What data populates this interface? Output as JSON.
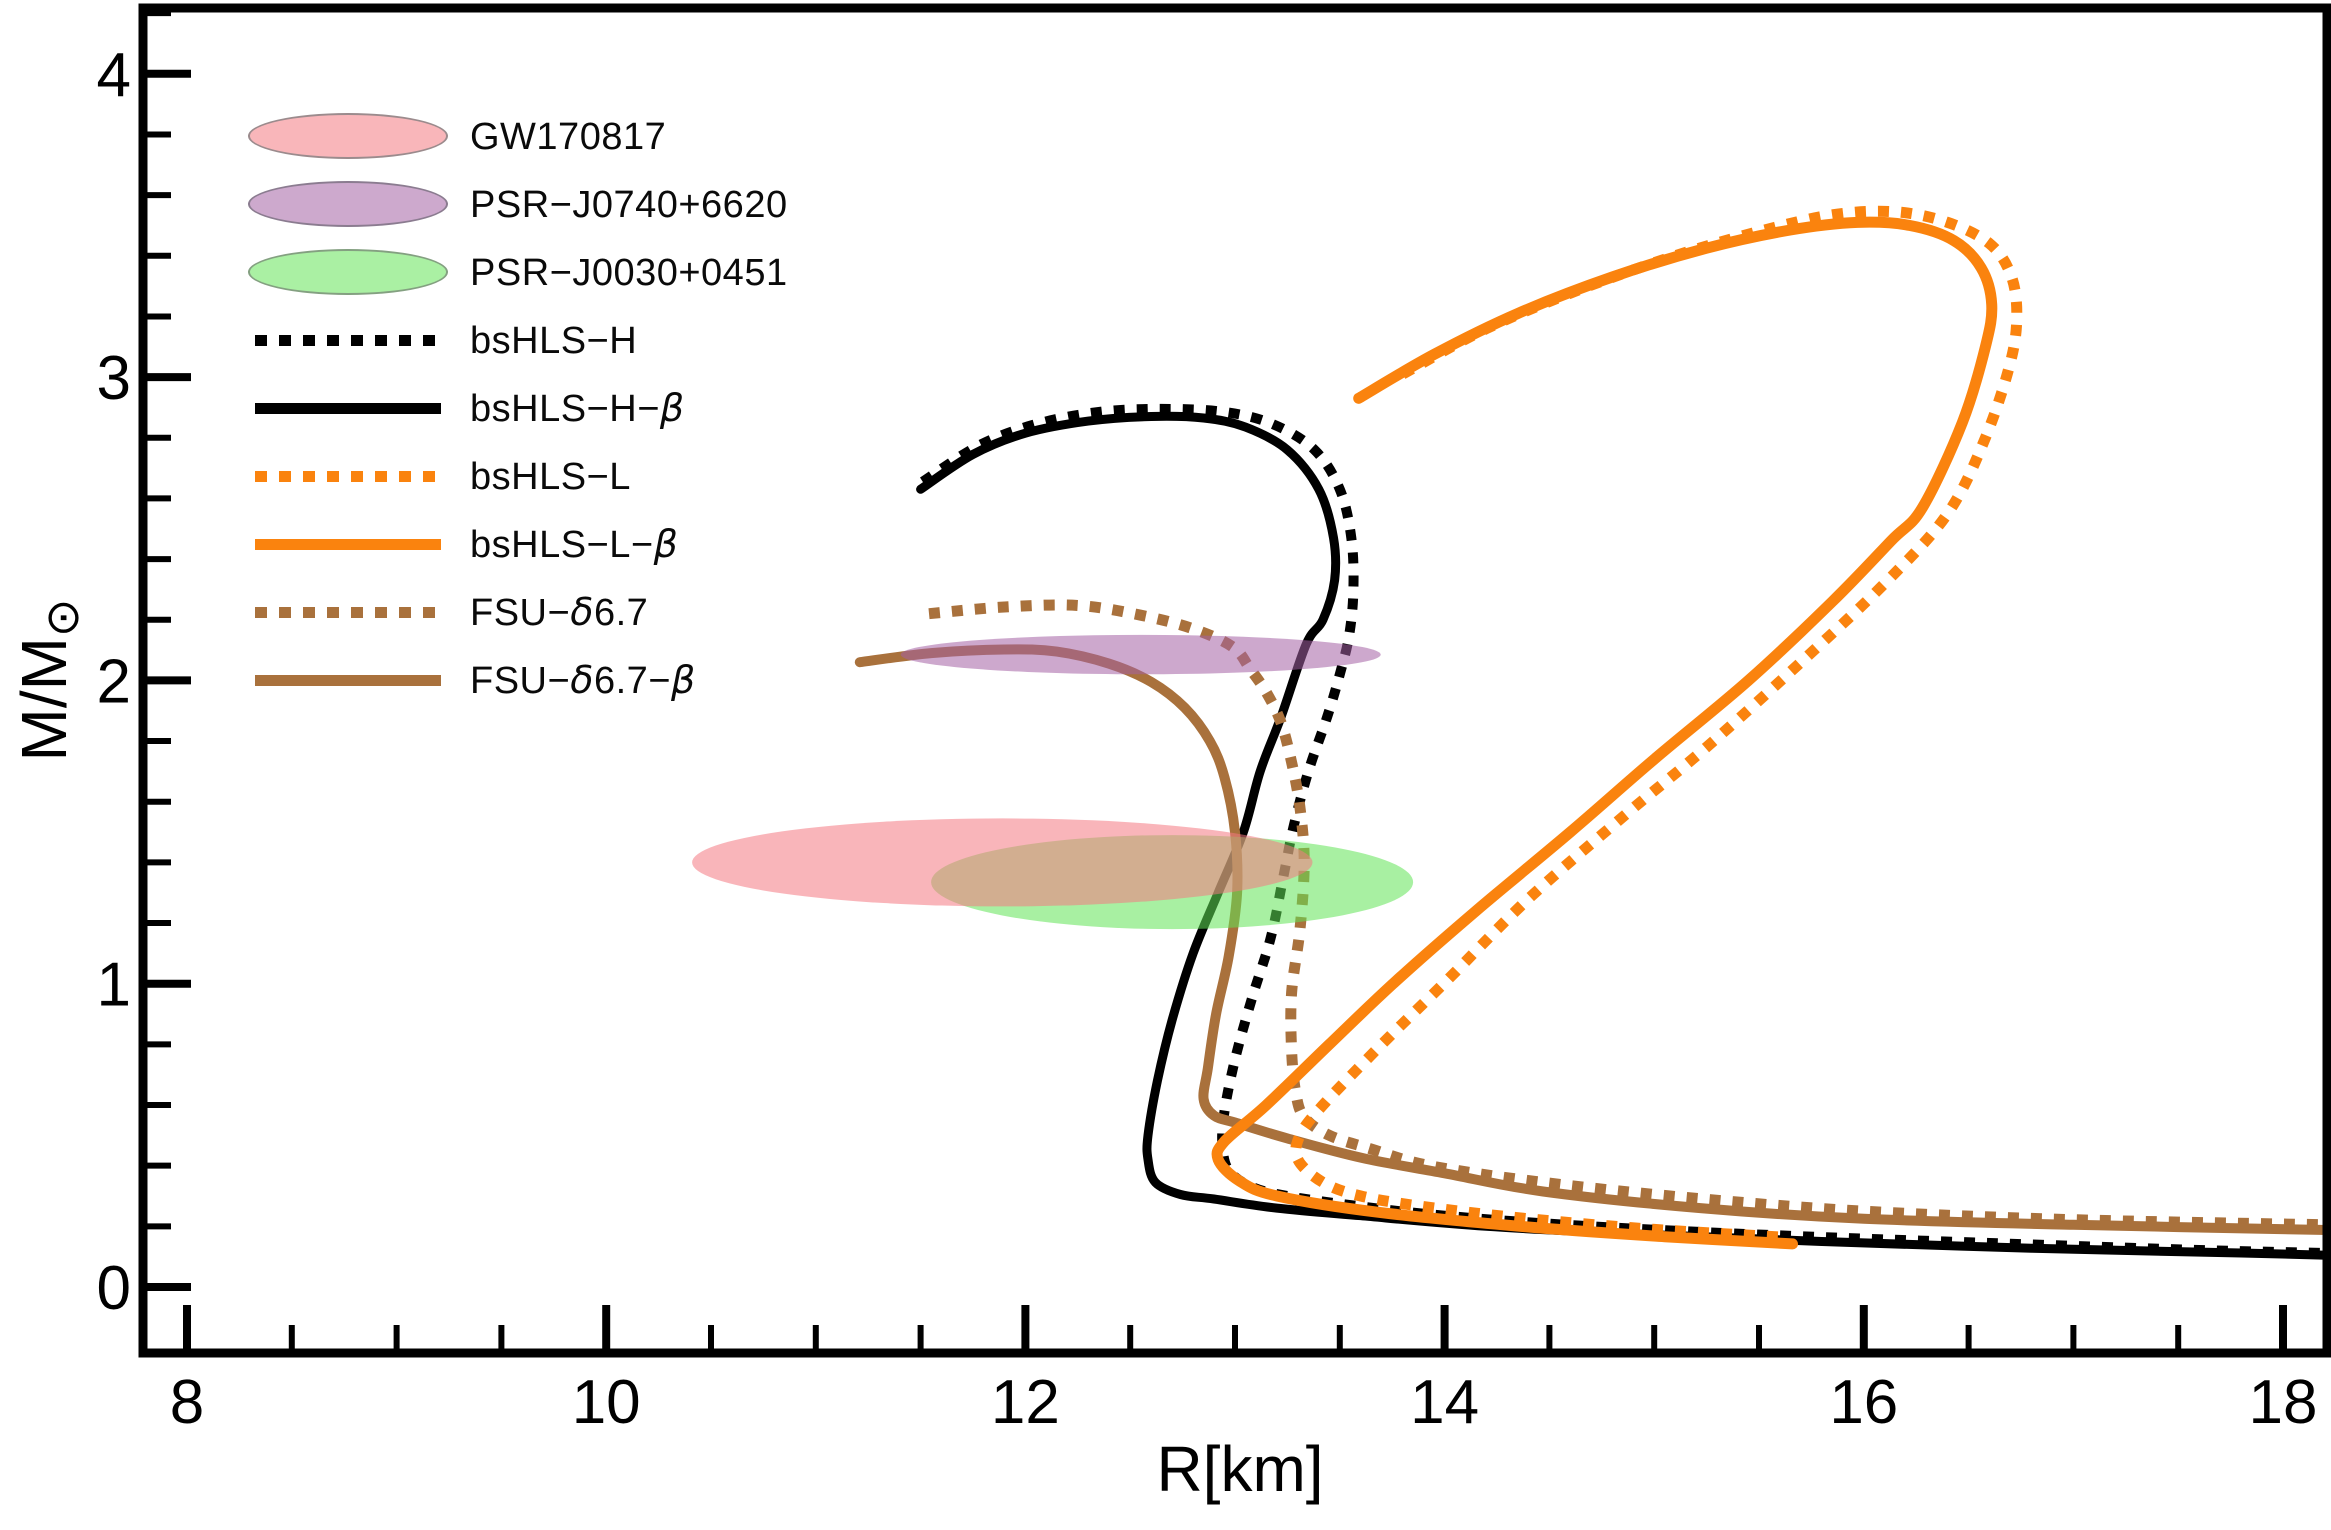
{
  "figure": {
    "background": "#ffffff",
    "axes": {
      "xlabel": "R[km]",
      "ylabel_main": "M/M",
      "ylabel_sub": "⊙"
    },
    "legend": {
      "items": [
        {
          "p1": "GW170817",
          "swatch": {
            "kind": "ellipse",
            "fill": "#F9B6BA",
            "border": "#9B8B8D"
          }
        },
        {
          "p1": "PSR−J0740+6620",
          "swatch": {
            "kind": "ellipse",
            "fill": "#CDA9CD",
            "border": "#8B7C90"
          }
        },
        {
          "p1": "PSR−J0030+0451",
          "swatch": {
            "kind": "ellipse",
            "fill": "#AAF0A3",
            "border": "#84A081"
          }
        },
        {
          "p1": "bsHLS−H",
          "swatch": {
            "kind": "dotted",
            "color": "#000000"
          }
        },
        {
          "p1": "bsHLS−H−",
          "i1": "β",
          "swatch": {
            "kind": "solid",
            "color": "#000000"
          }
        },
        {
          "p1": "bsHLS−L",
          "swatch": {
            "kind": "dotted",
            "color": "#FA830E"
          }
        },
        {
          "p1": "bsHLS−L−",
          "i1": "β",
          "swatch": {
            "kind": "solid",
            "color": "#FA830E"
          }
        },
        {
          "p1": "FSU−",
          "i1": "δ",
          "p2": "6.7",
          "swatch": {
            "kind": "dotted",
            "color": "#A9713C"
          }
        },
        {
          "p1": "FSU−",
          "i1": "δ",
          "p2": "6.7−",
          "i2": "β",
          "swatch": {
            "kind": "solid",
            "color": "#A9713C"
          }
        }
      ]
    }
  },
  "chart_data": {
    "type": "line",
    "title": "",
    "xlabel": "R[km]",
    "ylabel": "M/M⊙",
    "xlim": [
      7.79,
      18.21
    ],
    "ylim": [
      -0.22,
      4.22
    ],
    "grid": false,
    "legend_position": "upper-left-inside",
    "x_ticks_major": [
      8,
      10,
      12,
      14,
      16,
      18
    ],
    "x_tick_minor_step": 0.5,
    "y_ticks_major": [
      0,
      1,
      2,
      3,
      4
    ],
    "y_tick_minor_step": 0.2,
    "series": [
      {
        "name": "bsHLS-H",
        "style": "dotted",
        "color": "#000000",
        "width": 10,
        "points": [
          [
            11.51,
            2.655
          ],
          [
            11.78,
            2.775
          ],
          [
            12.05,
            2.845
          ],
          [
            12.35,
            2.885
          ],
          [
            12.65,
            2.895
          ],
          [
            12.95,
            2.885
          ],
          [
            13.18,
            2.845
          ],
          [
            13.38,
            2.76
          ],
          [
            13.5,
            2.63
          ],
          [
            13.555,
            2.47
          ],
          [
            13.565,
            2.3
          ],
          [
            13.545,
            2.15
          ],
          [
            13.5,
            2.02
          ],
          [
            13.44,
            1.88
          ],
          [
            13.35,
            1.7
          ],
          [
            13.28,
            1.52
          ],
          [
            13.23,
            1.35
          ],
          [
            13.17,
            1.15
          ],
          [
            13.08,
            0.95
          ],
          [
            13.0,
            0.75
          ],
          [
            12.95,
            0.58
          ],
          [
            12.94,
            0.47
          ],
          [
            12.97,
            0.385
          ],
          [
            13.08,
            0.33
          ],
          [
            13.25,
            0.3
          ],
          [
            13.55,
            0.27
          ],
          [
            14.0,
            0.235
          ],
          [
            14.7,
            0.2
          ],
          [
            15.6,
            0.17
          ],
          [
            16.6,
            0.145
          ],
          [
            17.6,
            0.122
          ],
          [
            18.21,
            0.112
          ]
        ]
      },
      {
        "name": "bsHLS-H-β",
        "style": "solid",
        "color": "#000000",
        "width": 9,
        "points": [
          [
            11.5,
            2.63
          ],
          [
            11.75,
            2.745
          ],
          [
            12.0,
            2.815
          ],
          [
            12.3,
            2.855
          ],
          [
            12.6,
            2.87
          ],
          [
            12.85,
            2.865
          ],
          [
            13.05,
            2.835
          ],
          [
            13.25,
            2.76
          ],
          [
            13.4,
            2.63
          ],
          [
            13.47,
            2.47
          ],
          [
            13.475,
            2.33
          ],
          [
            13.42,
            2.2
          ],
          [
            13.34,
            2.12
          ],
          [
            13.22,
            1.88
          ],
          [
            13.12,
            1.7
          ],
          [
            13.04,
            1.5
          ],
          [
            12.92,
            1.3
          ],
          [
            12.8,
            1.1
          ],
          [
            12.7,
            0.88
          ],
          [
            12.63,
            0.68
          ],
          [
            12.585,
            0.5
          ],
          [
            12.585,
            0.42
          ],
          [
            12.62,
            0.345
          ],
          [
            12.74,
            0.305
          ],
          [
            12.9,
            0.29
          ],
          [
            13.2,
            0.26
          ],
          [
            13.6,
            0.235
          ],
          [
            14.2,
            0.2
          ],
          [
            14.9,
            0.175
          ],
          [
            15.8,
            0.15
          ],
          [
            16.8,
            0.128
          ],
          [
            17.8,
            0.112
          ],
          [
            18.21,
            0.105
          ]
        ]
      },
      {
        "name": "bsHLS-L",
        "style": "dotted",
        "color": "#FA830E",
        "width": 11,
        "points": [
          [
            13.8,
            3.01
          ],
          [
            14.2,
            3.16
          ],
          [
            14.65,
            3.29
          ],
          [
            15.1,
            3.4
          ],
          [
            15.5,
            3.48
          ],
          [
            15.85,
            3.535
          ],
          [
            16.15,
            3.545
          ],
          [
            16.4,
            3.51
          ],
          [
            16.6,
            3.44
          ],
          [
            16.7,
            3.34
          ],
          [
            16.73,
            3.21
          ],
          [
            16.7,
            3.05
          ],
          [
            16.58,
            2.8
          ],
          [
            16.4,
            2.55
          ],
          [
            16.1,
            2.32
          ],
          [
            15.7,
            2.06
          ],
          [
            15.25,
            1.78
          ],
          [
            14.85,
            1.55
          ],
          [
            14.4,
            1.28
          ],
          [
            14.01,
            1.01
          ],
          [
            13.7,
            0.8
          ],
          [
            13.42,
            0.6
          ],
          [
            13.31,
            0.5
          ],
          [
            13.3,
            0.42
          ],
          [
            13.42,
            0.345
          ],
          [
            13.6,
            0.3
          ],
          [
            13.9,
            0.265
          ],
          [
            14.4,
            0.225
          ],
          [
            15.0,
            0.19
          ],
          [
            15.6,
            0.165
          ]
        ]
      },
      {
        "name": "bsHLS-L-β",
        "style": "solid",
        "color": "#FA830E",
        "width": 11,
        "points": [
          [
            13.59,
            2.93
          ],
          [
            13.95,
            3.075
          ],
          [
            14.35,
            3.21
          ],
          [
            14.8,
            3.33
          ],
          [
            15.25,
            3.425
          ],
          [
            15.65,
            3.485
          ],
          [
            15.97,
            3.51
          ],
          [
            16.22,
            3.5
          ],
          [
            16.43,
            3.45
          ],
          [
            16.56,
            3.36
          ],
          [
            16.61,
            3.24
          ],
          [
            16.58,
            3.1
          ],
          [
            16.47,
            2.85
          ],
          [
            16.28,
            2.57
          ],
          [
            16.13,
            2.46
          ],
          [
            15.85,
            2.26
          ],
          [
            15.45,
            2.0
          ],
          [
            15.0,
            1.74
          ],
          [
            14.6,
            1.5
          ],
          [
            14.15,
            1.24
          ],
          [
            13.77,
            1.01
          ],
          [
            13.45,
            0.8
          ],
          [
            13.15,
            0.6
          ],
          [
            12.95,
            0.48
          ],
          [
            12.92,
            0.42
          ],
          [
            13.02,
            0.35
          ],
          [
            13.2,
            0.3
          ],
          [
            13.7,
            0.245
          ],
          [
            14.45,
            0.195
          ],
          [
            15.05,
            0.166
          ],
          [
            15.66,
            0.142
          ]
        ]
      },
      {
        "name": "FSU-δ6.7",
        "style": "dotted",
        "color": "#A9713C",
        "width": 11,
        "points": [
          [
            11.54,
            2.22
          ],
          [
            11.9,
            2.242
          ],
          [
            12.25,
            2.247
          ],
          [
            12.55,
            2.215
          ],
          [
            12.8,
            2.17
          ],
          [
            12.99,
            2.11
          ],
          [
            13.07,
            2.04
          ],
          [
            13.15,
            1.96
          ],
          [
            13.22,
            1.86
          ],
          [
            13.27,
            1.73
          ],
          [
            13.31,
            1.58
          ],
          [
            13.33,
            1.4
          ],
          [
            13.31,
            1.18
          ],
          [
            13.27,
            0.97
          ],
          [
            13.27,
            0.78
          ],
          [
            13.29,
            0.64
          ],
          [
            13.33,
            0.56
          ],
          [
            13.45,
            0.5
          ],
          [
            13.65,
            0.455
          ],
          [
            13.93,
            0.4
          ],
          [
            14.47,
            0.345
          ],
          [
            15.2,
            0.292
          ],
          [
            16.0,
            0.25
          ],
          [
            17.0,
            0.222
          ],
          [
            18.21,
            0.205
          ]
        ]
      },
      {
        "name": "FSU-δ6.7-β",
        "style": "solid",
        "color": "#A9713C",
        "width": 10,
        "points": [
          [
            11.21,
            2.06
          ],
          [
            11.55,
            2.09
          ],
          [
            11.9,
            2.102
          ],
          [
            12.15,
            2.095
          ],
          [
            12.4,
            2.055
          ],
          [
            12.6,
            1.995
          ],
          [
            12.76,
            1.91
          ],
          [
            12.88,
            1.8
          ],
          [
            12.95,
            1.68
          ],
          [
            13.0,
            1.5
          ],
          [
            13.01,
            1.3
          ],
          [
            12.97,
            1.09
          ],
          [
            12.91,
            0.9
          ],
          [
            12.87,
            0.72
          ],
          [
            12.85,
            0.62
          ],
          [
            12.9,
            0.565
          ],
          [
            13.01,
            0.54
          ],
          [
            13.25,
            0.49
          ],
          [
            13.61,
            0.425
          ],
          [
            14.0,
            0.375
          ],
          [
            14.47,
            0.315
          ],
          [
            15.22,
            0.26
          ],
          [
            16.0,
            0.225
          ],
          [
            17.0,
            0.205
          ],
          [
            18.21,
            0.188
          ]
        ]
      }
    ],
    "ellipses": [
      {
        "name": "PSR-J0030+0451",
        "center": [
          12.7,
          1.335
        ],
        "rx_km": 1.15,
        "ry_M": 0.155,
        "fill": "rgba(97,228,86,0.55)"
      },
      {
        "name": "GW170817",
        "center": [
          11.89,
          1.4
        ],
        "rx_km": 1.48,
        "ry_M": 0.145,
        "fill": "rgba(244,120,130,0.55)"
      },
      {
        "name": "PSR-J0740+6620",
        "center": [
          12.55,
          2.085
        ],
        "rx_km": 1.145,
        "ry_M": 0.065,
        "fill": "rgba(164,97,164,0.55)"
      }
    ]
  }
}
